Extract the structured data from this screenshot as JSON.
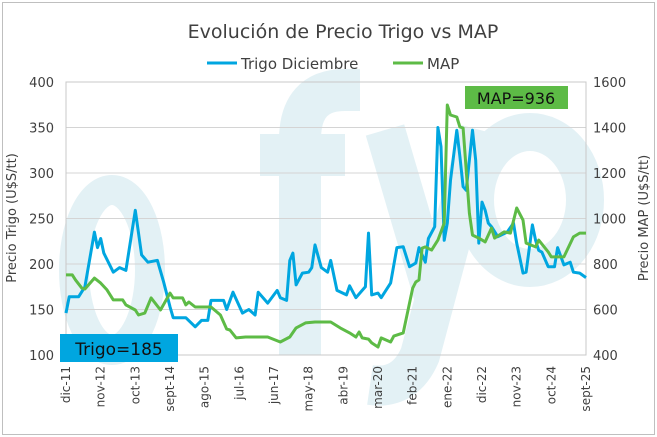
{
  "chart_data": {
    "type": "line",
    "title": "Evolución de Precio Trigo vs MAP",
    "ylabel": "Precio Trigo (U$S/tt)",
    "y2label": "Precio MAP (U$S/tt)",
    "ylim": [
      100,
      400
    ],
    "y2lim": [
      400,
      1600
    ],
    "yticks": [
      "100",
      "150",
      "200",
      "250",
      "300",
      "350",
      "400"
    ],
    "y2ticks": [
      "400",
      "600",
      "800",
      "1000",
      "1200",
      "1400",
      "1600"
    ],
    "xticks": [
      "dic-11",
      "nov-12",
      "oct-13",
      "sept-14",
      "ago-15",
      "jul-16",
      "jun-17",
      "may-18",
      "abr-19",
      "mar-20",
      "feb-21",
      "ene-22",
      "dic-22",
      "nov-23",
      "oct-24",
      "sept-25"
    ],
    "xtick_dates": [
      "2011-12",
      "2012-11",
      "2013-10",
      "2014-09",
      "2015-08",
      "2016-07",
      "2017-06",
      "2018-05",
      "2019-04",
      "2020-03",
      "2021-02",
      "2022-01",
      "2022-12",
      "2023-11",
      "2024-10",
      "2025-09"
    ],
    "grid": "horizontal",
    "legend": "top",
    "series": [
      {
        "name": "Trigo Diciembre",
        "axis": "left",
        "color": "#00a6e0",
        "points": [
          [
            "2011-12",
            146
          ],
          [
            "2012-01",
            164
          ],
          [
            "2012-04",
            164
          ],
          [
            "2012-06",
            175
          ],
          [
            "2012-09",
            235
          ],
          [
            "2012-10",
            218
          ],
          [
            "2012-11",
            228
          ],
          [
            "2012-12",
            212
          ],
          [
            "2013-03",
            191
          ],
          [
            "2013-05",
            196
          ],
          [
            "2013-07",
            193
          ],
          [
            "2013-10",
            259
          ],
          [
            "2013-12",
            210
          ],
          [
            "2014-02",
            202
          ],
          [
            "2014-05",
            204
          ],
          [
            "2014-07",
            180
          ],
          [
            "2014-09",
            153
          ],
          [
            "2014-10",
            141
          ],
          [
            "2015-02",
            141
          ],
          [
            "2015-05",
            131
          ],
          [
            "2015-07",
            138
          ],
          [
            "2015-09",
            138
          ],
          [
            "2015-10",
            160
          ],
          [
            "2016-02",
            160
          ],
          [
            "2016-03",
            150
          ],
          [
            "2016-05",
            169
          ],
          [
            "2016-08",
            146
          ],
          [
            "2016-10",
            150
          ],
          [
            "2016-12",
            144
          ],
          [
            "2017-01",
            169
          ],
          [
            "2017-04",
            157
          ],
          [
            "2017-07",
            171
          ],
          [
            "2017-08",
            163
          ],
          [
            "2017-10",
            160
          ],
          [
            "2017-11",
            204
          ],
          [
            "2017-12",
            212
          ],
          [
            "2018-01",
            177
          ],
          [
            "2018-03",
            190
          ],
          [
            "2018-05",
            191
          ],
          [
            "2018-06",
            196
          ],
          [
            "2018-07",
            221
          ],
          [
            "2018-09",
            196
          ],
          [
            "2018-11",
            191
          ],
          [
            "2018-12",
            204
          ],
          [
            "2019-02",
            171
          ],
          [
            "2019-05",
            166
          ],
          [
            "2019-06",
            176
          ],
          [
            "2019-08",
            163
          ],
          [
            "2019-10",
            171
          ],
          [
            "2019-11",
            175
          ],
          [
            "2019-12",
            234
          ],
          [
            "2020-01",
            166
          ],
          [
            "2020-03",
            168
          ],
          [
            "2020-04",
            163
          ],
          [
            "2020-07",
            179
          ],
          [
            "2020-09",
            218
          ],
          [
            "2020-11",
            219
          ],
          [
            "2021-01",
            197
          ],
          [
            "2021-03",
            201
          ],
          [
            "2021-04",
            218
          ],
          [
            "2021-06",
            202
          ],
          [
            "2021-07",
            228
          ],
          [
            "2021-09",
            241
          ],
          [
            "2021-10",
            350
          ],
          [
            "2021-11",
            329
          ],
          [
            "2021-12",
            226
          ],
          [
            "2022-01",
            245
          ],
          [
            "2022-02",
            292
          ],
          [
            "2022-04",
            347
          ],
          [
            "2022-05",
            318
          ],
          [
            "2022-06",
            285
          ],
          [
            "2022-07",
            281
          ],
          [
            "2022-09",
            347
          ],
          [
            "2022-10",
            314
          ],
          [
            "2022-11",
            223
          ],
          [
            "2022-12",
            268
          ],
          [
            "2023-01",
            259
          ],
          [
            "2023-02",
            245
          ],
          [
            "2023-03",
            241
          ],
          [
            "2023-05",
            230
          ],
          [
            "2023-08",
            235
          ],
          [
            "2023-10",
            245
          ],
          [
            "2023-11",
            223
          ],
          [
            "2024-01",
            190
          ],
          [
            "2024-02",
            191
          ],
          [
            "2024-04",
            243
          ],
          [
            "2024-05",
            226
          ],
          [
            "2024-06",
            215
          ],
          [
            "2024-07",
            213
          ],
          [
            "2024-09",
            197
          ],
          [
            "2024-11",
            197
          ],
          [
            "2024-12",
            218
          ],
          [
            "2025-02",
            199
          ],
          [
            "2025-04",
            202
          ],
          [
            "2025-05",
            191
          ],
          [
            "2025-07",
            190
          ],
          [
            "2025-09",
            185
          ]
        ]
      },
      {
        "name": "MAP",
        "axis": "right",
        "color": "#5dbb46",
        "points": [
          [
            "2011-12",
            752
          ],
          [
            "2012-02",
            752
          ],
          [
            "2012-03",
            730
          ],
          [
            "2012-05",
            694
          ],
          [
            "2012-06",
            690
          ],
          [
            "2012-09",
            738
          ],
          [
            "2012-11",
            716
          ],
          [
            "2013-01",
            686
          ],
          [
            "2013-03",
            642
          ],
          [
            "2013-06",
            642
          ],
          [
            "2013-07",
            620
          ],
          [
            "2013-10",
            598
          ],
          [
            "2013-11",
            576
          ],
          [
            "2014-01",
            584
          ],
          [
            "2014-03",
            651
          ],
          [
            "2014-06",
            598
          ],
          [
            "2014-09",
            672
          ],
          [
            "2014-10",
            651
          ],
          [
            "2015-01",
            651
          ],
          [
            "2015-02",
            620
          ],
          [
            "2015-03",
            633
          ],
          [
            "2015-05",
            611
          ],
          [
            "2015-10",
            611
          ],
          [
            "2016-01",
            576
          ],
          [
            "2016-03",
            514
          ],
          [
            "2016-04",
            510
          ],
          [
            "2016-06",
            475
          ],
          [
            "2016-09",
            479
          ],
          [
            "2017-04",
            479
          ],
          [
            "2017-08",
            457
          ],
          [
            "2017-11",
            479
          ],
          [
            "2018-01",
            519
          ],
          [
            "2018-04",
            541
          ],
          [
            "2018-07",
            545
          ],
          [
            "2018-12",
            545
          ],
          [
            "2019-03",
            519
          ],
          [
            "2019-06",
            497
          ],
          [
            "2019-08",
            479
          ],
          [
            "2019-09",
            501
          ],
          [
            "2019-10",
            475
          ],
          [
            "2019-12",
            470
          ],
          [
            "2020-01",
            453
          ],
          [
            "2020-03",
            435
          ],
          [
            "2020-04",
            475
          ],
          [
            "2020-07",
            457
          ],
          [
            "2020-08",
            483
          ],
          [
            "2020-11",
            497
          ],
          [
            "2021-02",
            694
          ],
          [
            "2021-03",
            721
          ],
          [
            "2021-04",
            730
          ],
          [
            "2021-05",
            870
          ],
          [
            "2021-06",
            875
          ],
          [
            "2021-08",
            861
          ],
          [
            "2021-10",
            905
          ],
          [
            "2021-12",
            980
          ],
          [
            "2022-01",
            1499
          ],
          [
            "2022-02",
            1455
          ],
          [
            "2022-04",
            1446
          ],
          [
            "2022-05",
            1402
          ],
          [
            "2022-06",
            1398
          ],
          [
            "2022-08",
            1023
          ],
          [
            "2022-09",
            927
          ],
          [
            "2022-11",
            914
          ],
          [
            "2023-01",
            897
          ],
          [
            "2023-03",
            958
          ],
          [
            "2023-04",
            914
          ],
          [
            "2023-07",
            941
          ],
          [
            "2023-09",
            936
          ],
          [
            "2023-11",
            1046
          ],
          [
            "2024-01",
            993
          ],
          [
            "2024-02",
            892
          ],
          [
            "2024-05",
            875
          ],
          [
            "2024-06",
            905
          ],
          [
            "2024-09",
            853
          ],
          [
            "2024-10",
            831
          ],
          [
            "2025-02",
            831
          ],
          [
            "2025-05",
            919
          ],
          [
            "2025-07",
            936
          ],
          [
            "2025-09",
            936
          ]
        ]
      }
    ],
    "annotations": [
      {
        "text": "Trigo=185",
        "color": "#00a6e0"
      },
      {
        "text": "MAP=936",
        "color": "#5dbb46"
      }
    ],
    "watermark": "ofyo"
  }
}
